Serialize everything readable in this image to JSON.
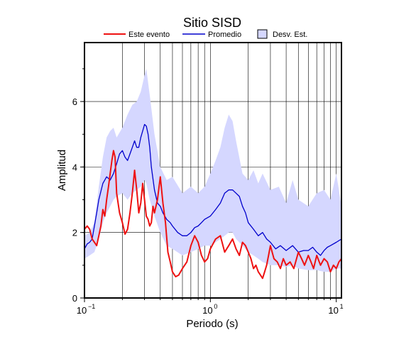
{
  "chart_data": {
    "type": "line",
    "title": "Sitio SISD",
    "xlabel": "Periodo (s)",
    "ylabel": "Amplitud",
    "xscale": "log",
    "xlim": [
      0.1,
      11
    ],
    "ylim": [
      0,
      7.8
    ],
    "grid": "vertical log grid + horizontal at y ticks",
    "legend_placement": "top",
    "x_ticks": [
      {
        "base": "10",
        "exp": "−1",
        "value": 0.1
      },
      {
        "base": "10",
        "exp": "0",
        "value": 1
      },
      {
        "base": "10",
        "exp": "1",
        "value": 10
      }
    ],
    "y_ticks": [
      0,
      2,
      4,
      6
    ],
    "colors": {
      "event": "#ee1111",
      "mean": "#0000cc",
      "band_fill": "#d5d7ff",
      "band_border": "#7777aa"
    },
    "series": [
      {
        "name": "Este evento",
        "x": [
          0.1,
          0.105,
          0.11,
          0.115,
          0.12,
          0.125,
          0.13,
          0.135,
          0.14,
          0.145,
          0.15,
          0.155,
          0.16,
          0.165,
          0.17,
          0.175,
          0.18,
          0.19,
          0.2,
          0.21,
          0.22,
          0.23,
          0.24,
          0.25,
          0.26,
          0.27,
          0.28,
          0.29,
          0.3,
          0.31,
          0.32,
          0.33,
          0.34,
          0.35,
          0.36,
          0.38,
          0.4,
          0.42,
          0.44,
          0.46,
          0.48,
          0.5,
          0.53,
          0.56,
          0.6,
          0.65,
          0.7,
          0.75,
          0.8,
          0.85,
          0.9,
          0.95,
          1.0,
          1.1,
          1.2,
          1.3,
          1.4,
          1.5,
          1.6,
          1.7,
          1.8,
          1.9,
          2.0,
          2.1,
          2.2,
          2.3,
          2.4,
          2.5,
          2.6,
          2.7,
          2.8,
          2.9,
          3.0,
          3.2,
          3.4,
          3.6,
          3.8,
          4.0,
          4.3,
          4.6,
          5.0,
          5.3,
          5.6,
          6.0,
          6.3,
          6.6,
          7.0,
          7.5,
          8.0,
          8.5,
          9.0,
          9.5,
          10.0,
          10.5,
          11.0
        ],
        "values": [
          2.1,
          2.2,
          2.1,
          1.8,
          1.7,
          1.6,
          1.9,
          2.2,
          2.7,
          2.5,
          3.0,
          3.4,
          3.8,
          4.2,
          4.5,
          4.3,
          3.2,
          2.6,
          2.3,
          1.95,
          2.1,
          2.6,
          3.2,
          3.9,
          3.3,
          2.6,
          2.9,
          3.5,
          3.0,
          2.5,
          2.4,
          2.2,
          2.3,
          2.8,
          2.6,
          3.0,
          3.7,
          2.9,
          2.3,
          1.4,
          1.1,
          0.8,
          0.65,
          0.7,
          0.9,
          1.1,
          1.6,
          1.9,
          1.7,
          1.3,
          1.1,
          1.2,
          1.5,
          1.8,
          1.9,
          1.4,
          1.6,
          1.8,
          1.5,
          1.3,
          1.7,
          1.6,
          1.4,
          1.2,
          0.9,
          1.0,
          0.8,
          0.7,
          0.6,
          0.8,
          1.0,
          1.3,
          1.6,
          1.2,
          1.1,
          0.9,
          1.2,
          1.0,
          1.1,
          0.9,
          1.4,
          1.2,
          1.0,
          1.3,
          1.1,
          0.9,
          1.3,
          1.0,
          1.2,
          1.1,
          0.8,
          1.0,
          0.9,
          1.1,
          1.2
        ]
      },
      {
        "name": "Promedio",
        "x": [
          0.1,
          0.105,
          0.11,
          0.115,
          0.12,
          0.125,
          0.13,
          0.14,
          0.15,
          0.16,
          0.17,
          0.18,
          0.19,
          0.2,
          0.21,
          0.22,
          0.23,
          0.24,
          0.25,
          0.26,
          0.27,
          0.28,
          0.29,
          0.3,
          0.31,
          0.32,
          0.33,
          0.34,
          0.36,
          0.38,
          0.4,
          0.42,
          0.45,
          0.48,
          0.5,
          0.55,
          0.6,
          0.65,
          0.7,
          0.75,
          0.8,
          0.85,
          0.9,
          1.0,
          1.1,
          1.2,
          1.3,
          1.4,
          1.5,
          1.6,
          1.7,
          1.8,
          1.9,
          2.0,
          2.2,
          2.4,
          2.6,
          2.8,
          3.0,
          3.3,
          3.6,
          4.0,
          4.5,
          5.0,
          5.5,
          6.0,
          6.5,
          7.0,
          7.5,
          8.0,
          8.5,
          9.0,
          10.0,
          11.0
        ],
        "values": [
          1.5,
          1.65,
          1.7,
          1.8,
          2.2,
          2.6,
          3.0,
          3.5,
          3.7,
          3.6,
          3.8,
          4.1,
          4.4,
          4.5,
          4.3,
          4.2,
          4.4,
          4.6,
          4.8,
          4.6,
          4.6,
          4.9,
          5.1,
          5.3,
          5.25,
          5.0,
          4.6,
          4.0,
          3.3,
          2.9,
          2.8,
          2.6,
          2.4,
          2.3,
          2.2,
          2.0,
          1.9,
          1.9,
          2.0,
          2.15,
          2.2,
          2.3,
          2.4,
          2.5,
          2.7,
          2.9,
          3.2,
          3.3,
          3.3,
          3.2,
          3.1,
          2.8,
          2.6,
          2.3,
          2.1,
          1.9,
          2.0,
          1.8,
          1.7,
          1.5,
          1.6,
          1.45,
          1.6,
          1.4,
          1.45,
          1.45,
          1.55,
          1.4,
          1.3,
          1.45,
          1.55,
          1.6,
          1.7,
          1.8
        ]
      },
      {
        "name": "Desv. Est.",
        "x": [
          0.1,
          0.11,
          0.12,
          0.13,
          0.14,
          0.15,
          0.16,
          0.17,
          0.18,
          0.2,
          0.22,
          0.24,
          0.26,
          0.28,
          0.3,
          0.31,
          0.33,
          0.36,
          0.4,
          0.45,
          0.5,
          0.6,
          0.7,
          0.8,
          0.9,
          1.0,
          1.1,
          1.2,
          1.3,
          1.4,
          1.5,
          1.6,
          1.8,
          2.0,
          2.2,
          2.4,
          2.6,
          3.0,
          3.5,
          4.0,
          4.5,
          5.0,
          6.0,
          7.0,
          8.0,
          9.0,
          10.0,
          11.0
        ],
        "upper": [
          1.9,
          2.0,
          2.3,
          3.4,
          4.3,
          4.9,
          5.1,
          5.2,
          4.9,
          5.2,
          5.6,
          5.9,
          6.0,
          6.3,
          6.8,
          7.0,
          6.2,
          5.0,
          4.0,
          3.6,
          3.7,
          3.2,
          3.4,
          3.2,
          3.4,
          3.8,
          4.2,
          4.6,
          5.2,
          5.6,
          5.4,
          4.8,
          3.8,
          3.6,
          3.9,
          3.5,
          3.8,
          3.3,
          3.4,
          2.9,
          3.6,
          3.0,
          2.8,
          3.2,
          3.3,
          3.0,
          3.8,
          2.8
        ],
        "lower": [
          1.2,
          1.3,
          1.4,
          1.8,
          2.3,
          2.6,
          2.8,
          3.0,
          3.1,
          3.2,
          3.0,
          3.2,
          3.3,
          3.4,
          3.6,
          3.5,
          3.0,
          2.5,
          2.0,
          1.6,
          1.5,
          1.3,
          1.4,
          1.5,
          1.6,
          1.6,
          1.7,
          1.8,
          1.9,
          2.0,
          2.0,
          1.8,
          1.6,
          1.4,
          1.3,
          1.2,
          1.1,
          1.0,
          1.0,
          0.95,
          1.0,
          0.9,
          0.85,
          0.85,
          0.8,
          0.8,
          0.9,
          0.9
        ]
      }
    ]
  }
}
